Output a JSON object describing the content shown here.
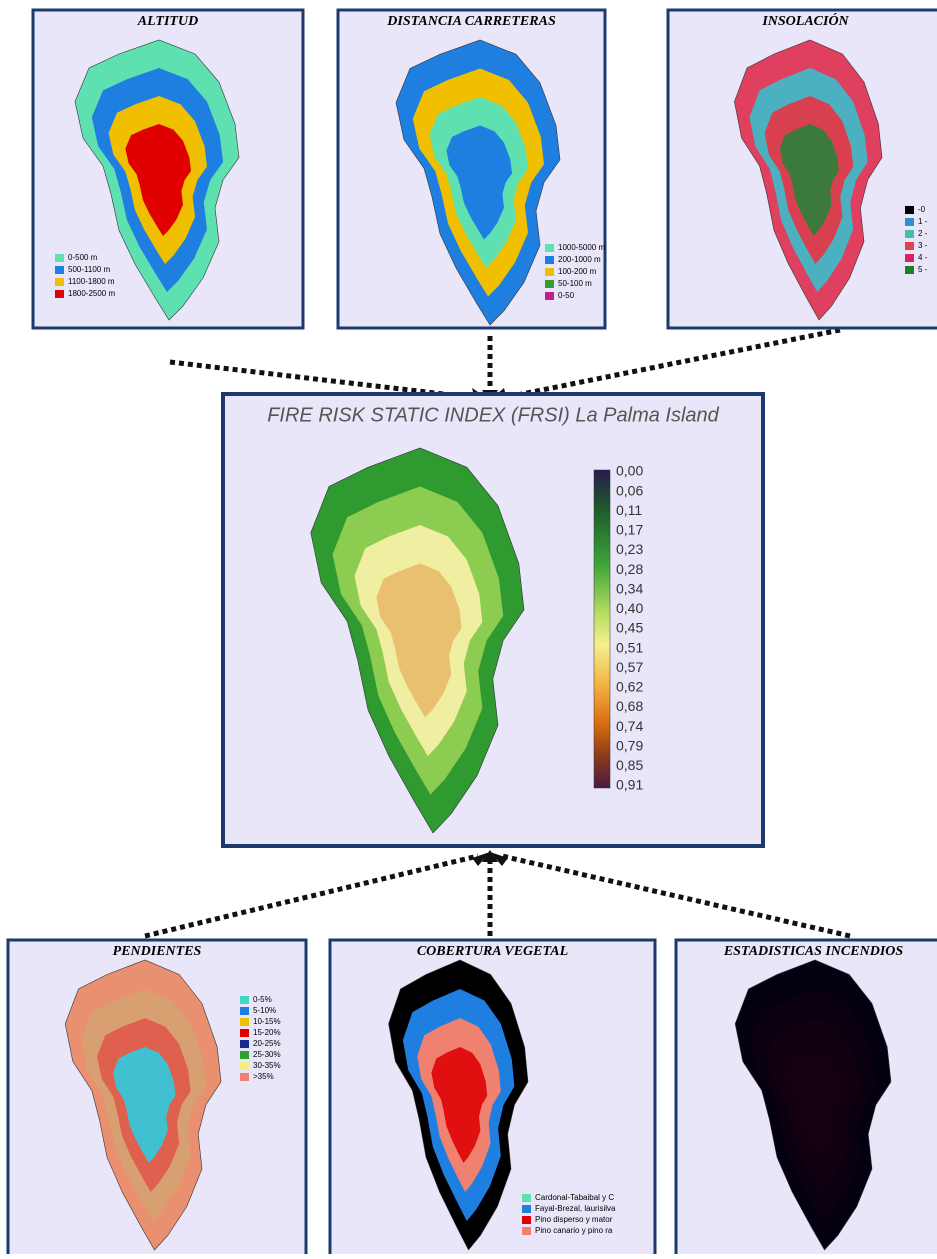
{
  "panels": [
    {
      "title": "ALTITUD",
      "legend": [
        "0-500 m",
        "500-1100 m",
        "1100-1800 m",
        "1800-2500 m"
      ]
    },
    {
      "title": "DISTANCIA CARRETERAS",
      "legend": [
        "1000-5000 m",
        "200-1000 m",
        "100-200 m",
        "50-100 m",
        "0-50"
      ]
    },
    {
      "title": "INSOLACIÓN",
      "legend": [
        "-0",
        "1 -",
        "2 -",
        "3 -",
        "4 -",
        "5 -"
      ]
    },
    {
      "title": "PENDIENTES",
      "legend": [
        "0-5%",
        "5-10%",
        "10-15%",
        "15-20%",
        "20-25%",
        "25-30%",
        "30-35%",
        ">35%"
      ]
    },
    {
      "title": "COBERTURA VEGETAL",
      "legend": [
        "Cardonal-Tabaibal y C",
        "Fayal-Brezal, laurisilva",
        "Pino disperso y mator",
        "Pino canario y pino ra"
      ]
    },
    {
      "title": "ESTADISTICAS INCENDIOS",
      "legend": []
    }
  ],
  "center": {
    "title": "FIRE RISK STATIC INDEX (FRSI) La Palma Island",
    "scale": [
      "0,00",
      "0,06",
      "0,11",
      "0,17",
      "0,23",
      "0,28",
      "0,34",
      "0,40",
      "0,45",
      "0,51",
      "0,57",
      "0,62",
      "0,68",
      "0,74",
      "0,79",
      "0,85",
      "0,91"
    ]
  }
}
